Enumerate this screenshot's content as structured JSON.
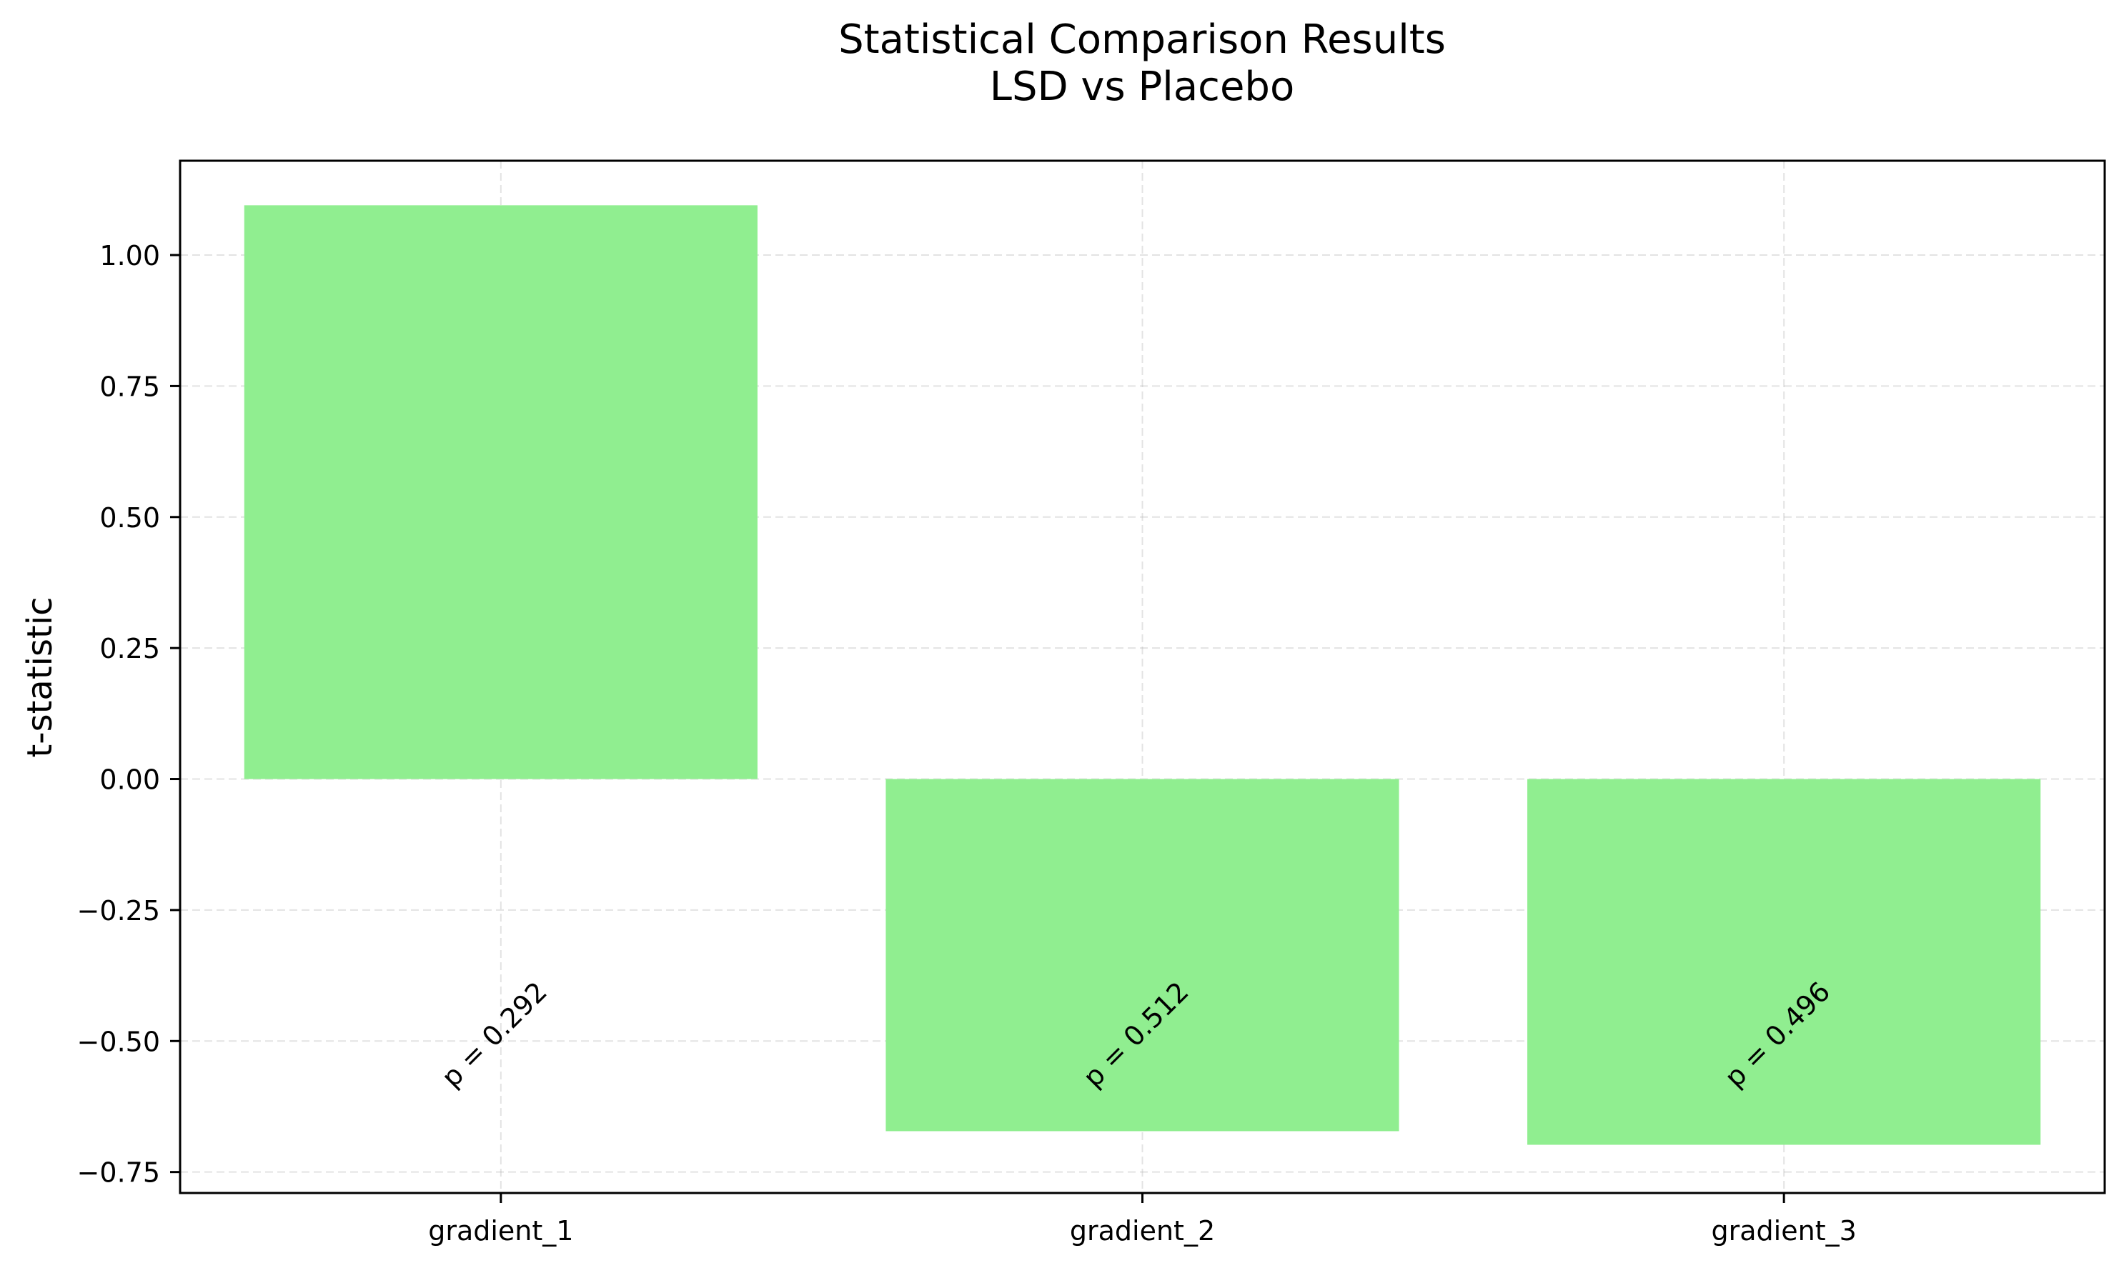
{
  "chart_data": {
    "type": "bar",
    "title": "Statistical Comparison Results",
    "subtitle": "LSD vs Placebo",
    "xlabel": "",
    "ylabel": "t-statistic",
    "categories": [
      "gradient_1",
      "gradient_2",
      "gradient_3"
    ],
    "values": [
      1.095,
      -0.672,
      -0.698
    ],
    "annotations": [
      "p = 0.292",
      "p = 0.512",
      "p = 0.496"
    ],
    "annotation_y": -0.5,
    "ylim": [
      -0.79,
      1.18
    ],
    "yticks": [
      1.0,
      0.75,
      0.5,
      0.25,
      0.0,
      -0.25,
      -0.5,
      -0.75
    ],
    "ytick_labels": [
      "1.00",
      "0.75",
      "0.50",
      "0.25",
      "0.00",
      "−0.25",
      "−0.50",
      "−0.75"
    ],
    "grid": true,
    "bar_color": "#90ee90"
  }
}
